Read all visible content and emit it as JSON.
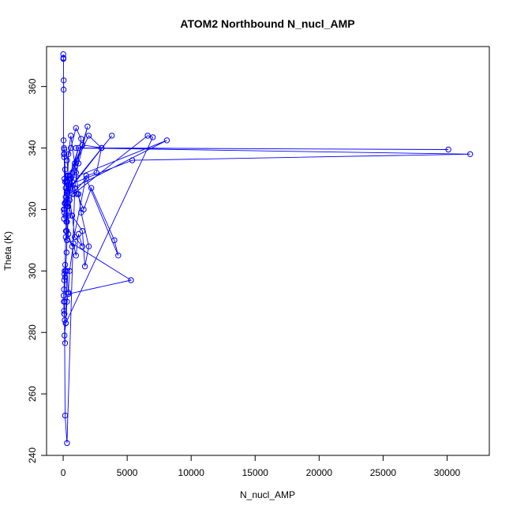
{
  "chart_data": {
    "type": "line",
    "title": "ATOM2 Northbound N_nucl_AMP",
    "xlabel": "N_nucl_AMP",
    "ylabel": "Theta (K)",
    "xlim": [
      -1300,
      33300
    ],
    "ylim": [
      240,
      373
    ],
    "xticks": [
      0,
      5000,
      10000,
      15000,
      20000,
      25000,
      30000
    ],
    "yticks": [
      240,
      260,
      280,
      300,
      320,
      340,
      360
    ],
    "grid": false,
    "marker": "open-circle",
    "colors": {
      "series": "#0000ff",
      "axis": "#000000",
      "background": "#ffffff"
    },
    "series": [
      {
        "x": [
          10,
          15,
          20,
          30,
          40,
          25,
          60,
          80,
          100,
          50,
          120,
          200,
          300,
          150,
          80,
          60,
          100,
          150,
          200,
          250,
          180,
          220,
          300,
          260,
          200,
          150,
          120,
          100,
          80,
          60,
          40,
          50,
          60,
          80,
          120,
          150,
          100,
          200,
          300,
          400,
          500,
          800,
          1000,
          1200,
          1500,
          900,
          700,
          400,
          300,
          250,
          300,
          400,
          500,
          700,
          1500,
          1700,
          2000,
          1400,
          1200,
          1000,
          600,
          400,
          350,
          300,
          250,
          400,
          700,
          1800,
          2600,
          3000,
          1500,
          900,
          600,
          350,
          300,
          280,
          200,
          150,
          120,
          100,
          150,
          300,
          900,
          1400,
          1000,
          600,
          300,
          400,
          600,
          700,
          900,
          1500,
          1900,
          1200,
          700,
          1100,
          1600,
          2200,
          4000,
          4300,
          1800,
          700,
          400,
          300,
          5300,
          400,
          300,
          200,
          7000,
          6600,
          800,
          600,
          8100,
          300,
          3800,
          300,
          1200,
          500,
          2000,
          3000,
          30100,
          1000,
          31800,
          5400,
          400,
          300,
          200,
          150,
          100,
          80,
          60
        ],
        "y": [
          370.5,
          369,
          369.3,
          359,
          362,
          342.5,
          338,
          337,
          330,
          320,
          322,
          322.5,
          326,
          333,
          339.5,
          340,
          338,
          329,
          327,
          323,
          318,
          313,
          310,
          306,
          300,
          298,
          300,
          299,
          297,
          294,
          292,
          290,
          287,
          286,
          284,
          276.5,
          279,
          283,
          290,
          293,
          300,
          309,
          305,
          312,
          308,
          311,
          318,
          321,
          326,
          329,
          331,
          328,
          323,
          318,
          313,
          301.5,
          308,
          319,
          325,
          332,
          344,
          338,
          329,
          321,
          316,
          312,
          308,
          331,
          332,
          340,
          341,
          334,
          327,
          322,
          316,
          313,
          311,
          302,
          290,
          286,
          253,
          244,
          327,
          343,
          346.5,
          340,
          336,
          331,
          327,
          332,
          335,
          341,
          347,
          335,
          329,
          325,
          320,
          327,
          310,
          305,
          330,
          325,
          318,
          310,
          297,
          292.5,
          300,
          283,
          343.5,
          344,
          325,
          330,
          342.5,
          326,
          344,
          325.5,
          340,
          331,
          344,
          340,
          339.5,
          340,
          338,
          336,
          328,
          325,
          324,
          322,
          320,
          319,
          317
        ]
      }
    ]
  }
}
